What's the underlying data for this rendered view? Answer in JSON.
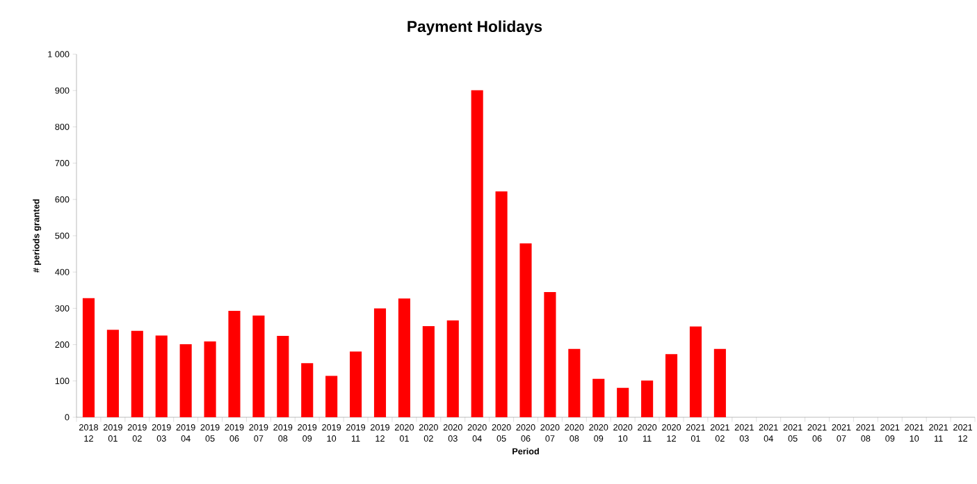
{
  "chart_data": {
    "type": "bar",
    "title": "Payment Holidays",
    "xlabel": "Period",
    "ylabel": "# periods granted",
    "categories": [
      "2018 12",
      "2019 01",
      "2019 02",
      "2019 03",
      "2019 04",
      "2019 05",
      "2019 06",
      "2019 07",
      "2019 08",
      "2019 09",
      "2019 10",
      "2019 11",
      "2019 12",
      "2020 01",
      "2020 02",
      "2020 03",
      "2020 04",
      "2020 05",
      "2020 06",
      "2020 07",
      "2020 08",
      "2020 09",
      "2020 10",
      "2020 11",
      "2020 12",
      "2021 01",
      "2021 02",
      "2021 03",
      "2021 04",
      "2021 05",
      "2021 06",
      "2021 07",
      "2021 08",
      "2021 09",
      "2021 10",
      "2021 11",
      "2021 12"
    ],
    "values": [
      328,
      241,
      238,
      225,
      201,
      209,
      293,
      280,
      224,
      149,
      114,
      181,
      300,
      327,
      251,
      267,
      901,
      622,
      479,
      345,
      188,
      106,
      81,
      101,
      174,
      250,
      188,
      null,
      null,
      null,
      null,
      null,
      null,
      null,
      null,
      null,
      null
    ],
    "color": "#ff0000",
    "ylim": [
      0,
      1000
    ],
    "yticks": [
      0,
      100,
      200,
      300,
      400,
      500,
      600,
      700,
      800,
      900,
      {
        "value": 1000,
        "label": "1 000"
      }
    ],
    "grid": false
  }
}
